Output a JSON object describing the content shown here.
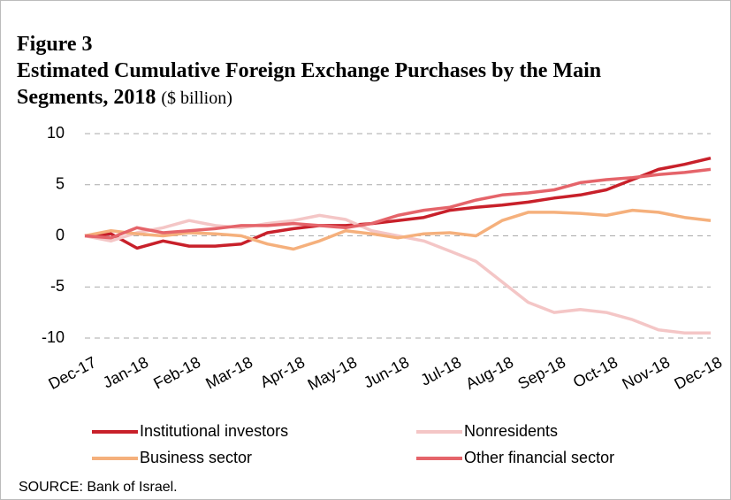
{
  "chart_data": {
    "type": "line",
    "title": "Figure 3",
    "subtitle": "Estimated Cumulative Foreign Exchange Purchases by the Main Segments, 2018",
    "unit": "($ billion)",
    "source": "SOURCE: Bank of Israel.",
    "categories": [
      "Dec-17",
      null,
      "Jan-18",
      null,
      "Feb-18",
      null,
      "Mar-18",
      null,
      "Apr-18",
      null,
      "May-18",
      null,
      "Jun-18",
      null,
      "Jul-18",
      null,
      "Aug-18",
      null,
      "Sep-18",
      null,
      "Oct-18",
      null,
      "Nov-18",
      null,
      "Dec-18"
    ],
    "series": [
      {
        "name": "Institutional investors",
        "color": "#c8202a",
        "values": [
          0,
          0.2,
          -1.2,
          -0.5,
          -1,
          -1,
          -0.8,
          0.3,
          0.7,
          1,
          1,
          1.2,
          1.5,
          1.8,
          2.5,
          2.8,
          3,
          3.3,
          3.7,
          4,
          4.5,
          5.5,
          6.5,
          7,
          7.6
        ]
      },
      {
        "name": "Nonresidents",
        "color": "#f4c6c6",
        "values": [
          0,
          -0.5,
          0.3,
          0.8,
          1.5,
          1,
          0.8,
          1.2,
          1.5,
          2,
          1.6,
          0.5,
          0,
          -0.5,
          -1.5,
          -2.5,
          -4.5,
          -6.5,
          -7.5,
          -7.2,
          -7.5,
          -8.2,
          -9.2,
          -9.5,
          -9.5
        ]
      },
      {
        "name": "Business sector",
        "color": "#f5b07c",
        "values": [
          0,
          0.5,
          0.2,
          0,
          0.3,
          0.2,
          0,
          -0.8,
          -1.3,
          -0.5,
          0.5,
          0.2,
          -0.2,
          0.2,
          0.3,
          0,
          1.5,
          2.3,
          2.3,
          2.2,
          2,
          2.5,
          2.3,
          1.8,
          1.5
        ]
      },
      {
        "name": "Other financial sector",
        "color": "#e5646a",
        "values": [
          0,
          -0.2,
          0.8,
          0.3,
          0.5,
          0.7,
          1,
          1,
          1.2,
          1,
          0.8,
          1.2,
          2,
          2.5,
          2.8,
          3.5,
          4,
          4.2,
          4.5,
          5.2,
          5.5,
          5.7,
          6,
          6.2,
          6.5
        ]
      }
    ],
    "ylim": [
      -10,
      10
    ],
    "yticks": [
      -10,
      -5,
      0,
      5,
      10
    ],
    "grid": true
  }
}
